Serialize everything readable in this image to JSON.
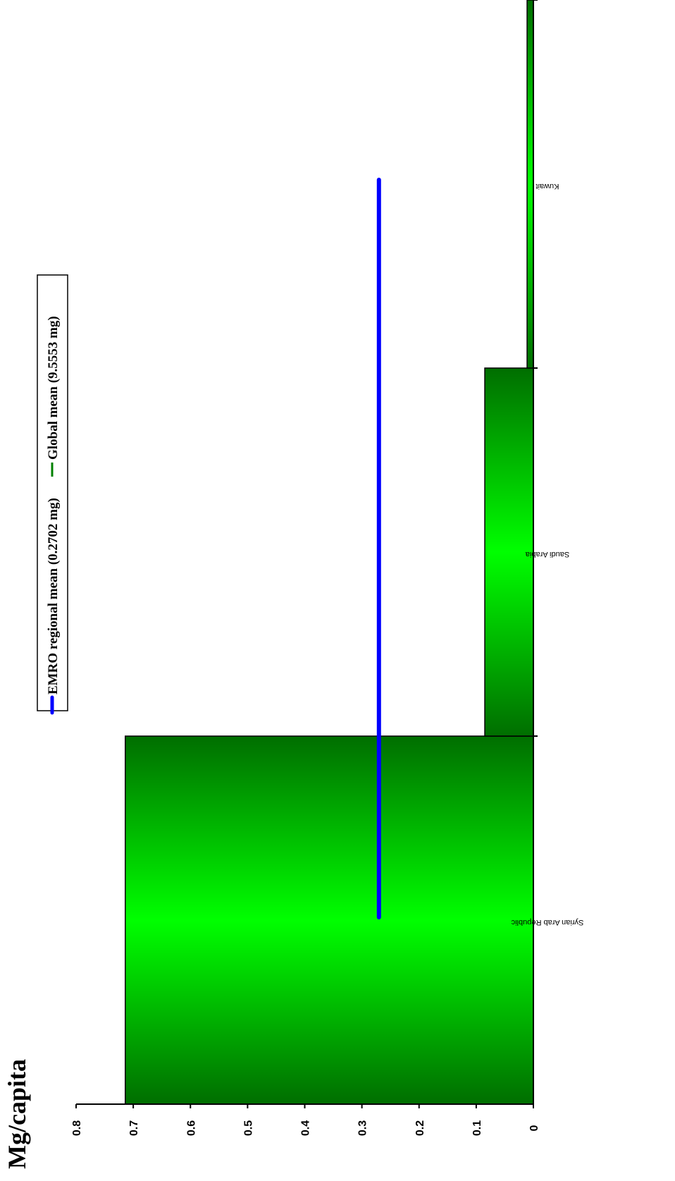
{
  "chart_data": {
    "type": "bar",
    "orientation": "rotated",
    "ylabel": "Mg/capita",
    "categories": [
      "Syrian Arab Republic",
      "Saudi Arabia",
      "Kuwait"
    ],
    "values": [
      0.714,
      0.085,
      0.011
    ],
    "ylim": [
      0,
      0.8
    ],
    "yticks": [
      "0",
      "0.1",
      "0.2",
      "0.3",
      "0.4",
      "0.5",
      "0.6",
      "0.7",
      "0.8"
    ],
    "grid": false,
    "bar_color": "#00ff00",
    "bar_edge_color": "#006e00",
    "reference_lines": [
      {
        "name": "EMRO regional mean (0.2702 mg)",
        "value": 0.2702,
        "color": "#0000ff"
      },
      {
        "name": "Global mean (9.5553 mg)",
        "value": 9.5553,
        "color": "#008000"
      }
    ],
    "legend": {
      "placement": "top",
      "entries": [
        {
          "label": "EMRO regional mean (0.2702 mg)",
          "color": "#0000ff"
        },
        {
          "label": "Global mean (9.5553 mg)",
          "color": "#008000"
        }
      ]
    }
  }
}
